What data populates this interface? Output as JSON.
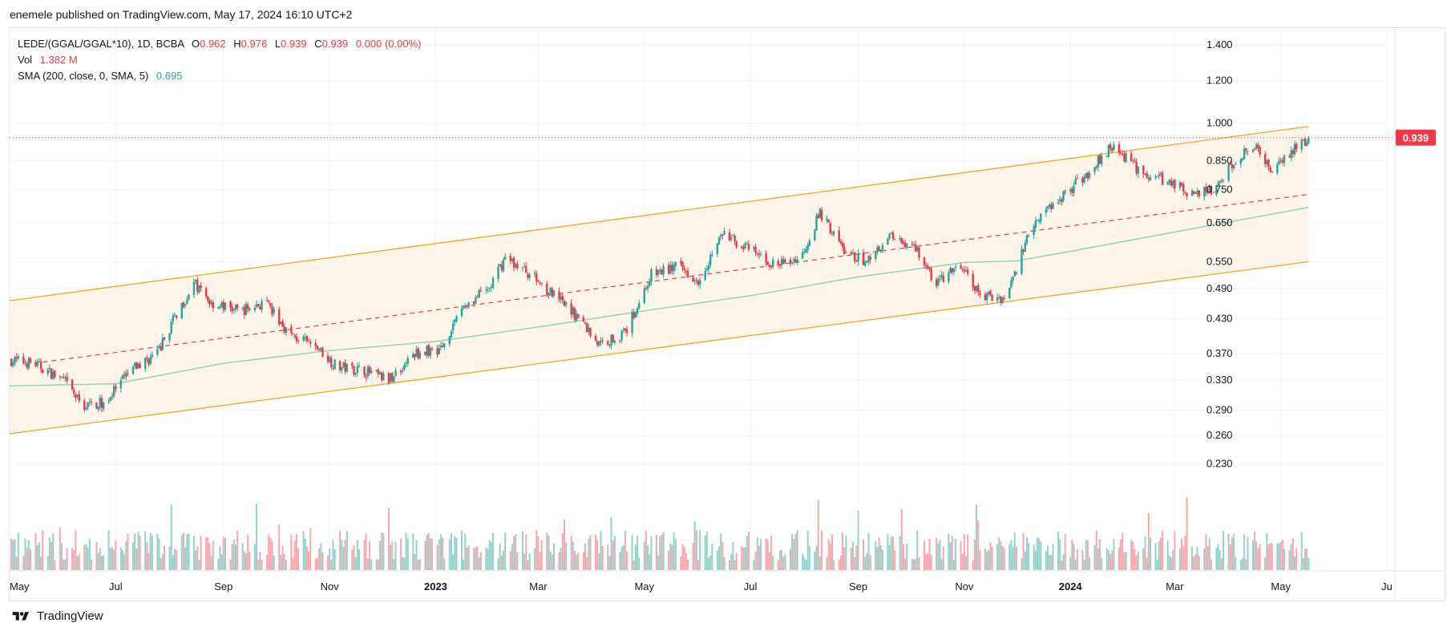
{
  "header": {
    "published": "enemele published on TradingView.com, May 17, 2024 16:10 UTC+2"
  },
  "legend": {
    "symbol": "LEDE/(GGAL/GGAL*10), 1D, BCBA",
    "o_label": "O",
    "o_value": "0.962",
    "h_label": "H",
    "h_value": "0.976",
    "l_label": "L",
    "l_value": "0.939",
    "c_label": "C",
    "c_value": "0.939",
    "change": "0.000 (0.00%)",
    "vol_label": "Vol",
    "vol_value": "1.382 M",
    "sma_label": "SMA (200, close, 0, SMA, 5)",
    "sma_value": "0.695"
  },
  "footer": {
    "brand": "TradingView"
  },
  "colors": {
    "up": "#26a69a",
    "down": "#f23645",
    "channel": "#f7a21b",
    "channel_fill": "#fdf3e3",
    "sma": "#8fd3bd",
    "grid": "#f0f3fa",
    "midline": "#f23645"
  },
  "chart_data": {
    "type": "candlestick",
    "title": "LEDE/(GGAL/GGAL*10), 1D, BCBA",
    "scale": "log",
    "ylim": [
      0.205,
      1.5
    ],
    "y_ticks": [
      "1.400",
      "1.200",
      "1.000",
      "0.850",
      "0.750",
      "0.650",
      "0.550",
      "0.490",
      "0.430",
      "0.370",
      "0.330",
      "0.290",
      "0.260",
      "0.230"
    ],
    "last_price": "0.939",
    "x_labels": [
      {
        "date": "2022-05-01",
        "label": "May"
      },
      {
        "date": "2022-07-01",
        "label": "Jul"
      },
      {
        "date": "2022-09-01",
        "label": "Sep"
      },
      {
        "date": "2022-11-01",
        "label": "Nov"
      },
      {
        "date": "2023-01-01",
        "label": "2023",
        "bold": true
      },
      {
        "date": "2023-03-01",
        "label": "Mar"
      },
      {
        "date": "2023-05-01",
        "label": "May"
      },
      {
        "date": "2023-07-01",
        "label": "Jul"
      },
      {
        "date": "2023-09-01",
        "label": "Sep"
      },
      {
        "date": "2023-11-01",
        "label": "Nov"
      },
      {
        "date": "2024-01-01",
        "label": "2024",
        "bold": true
      },
      {
        "date": "2024-03-01",
        "label": "Mar"
      },
      {
        "date": "2024-05-01",
        "label": "May"
      },
      {
        "date": "2024-07-01",
        "label": "Ju"
      }
    ],
    "date_range": [
      "2022-05-01",
      "2024-05-17"
    ],
    "price_keypoints": [
      [
        "2022-05-01",
        0.36
      ],
      [
        "2022-05-15",
        0.355
      ],
      [
        "2022-06-01",
        0.33
      ],
      [
        "2022-06-12",
        0.295
      ],
      [
        "2022-06-25",
        0.3
      ],
      [
        "2022-07-10",
        0.345
      ],
      [
        "2022-07-25",
        0.37
      ],
      [
        "2022-08-05",
        0.44
      ],
      [
        "2022-08-15",
        0.5
      ],
      [
        "2022-08-25",
        0.46
      ],
      [
        "2022-09-10",
        0.445
      ],
      [
        "2022-09-25",
        0.46
      ],
      [
        "2022-10-10",
        0.4
      ],
      [
        "2022-10-25",
        0.38
      ],
      [
        "2022-11-05",
        0.35
      ],
      [
        "2022-11-20",
        0.345
      ],
      [
        "2022-12-05",
        0.33
      ],
      [
        "2022-12-20",
        0.37
      ],
      [
        "2023-01-05",
        0.38
      ],
      [
        "2023-01-15",
        0.45
      ],
      [
        "2023-02-01",
        0.49
      ],
      [
        "2023-02-10",
        0.56
      ],
      [
        "2023-02-25",
        0.52
      ],
      [
        "2023-03-10",
        0.475
      ],
      [
        "2023-03-25",
        0.43
      ],
      [
        "2023-04-05",
        0.385
      ],
      [
        "2023-04-20",
        0.405
      ],
      [
        "2023-05-05",
        0.52
      ],
      [
        "2023-05-20",
        0.54
      ],
      [
        "2023-06-01",
        0.51
      ],
      [
        "2023-06-15",
        0.62
      ],
      [
        "2023-06-30",
        0.58
      ],
      [
        "2023-07-15",
        0.54
      ],
      [
        "2023-07-30",
        0.56
      ],
      [
        "2023-08-10",
        0.68
      ],
      [
        "2023-08-25",
        0.57
      ],
      [
        "2023-09-05",
        0.55
      ],
      [
        "2023-09-20",
        0.62
      ],
      [
        "2023-10-05",
        0.58
      ],
      [
        "2023-10-15",
        0.5
      ],
      [
        "2023-10-30",
        0.54
      ],
      [
        "2023-11-10",
        0.475
      ],
      [
        "2023-11-25",
        0.47
      ],
      [
        "2023-12-10",
        0.65
      ],
      [
        "2023-12-25",
        0.72
      ],
      [
        "2024-01-10",
        0.8
      ],
      [
        "2024-01-25",
        0.91
      ],
      [
        "2024-02-10",
        0.81
      ],
      [
        "2024-02-25",
        0.78
      ],
      [
        "2024-03-10",
        0.74
      ],
      [
        "2024-03-25",
        0.75
      ],
      [
        "2024-04-05",
        0.86
      ],
      [
        "2024-04-15",
        0.91
      ],
      [
        "2024-04-25",
        0.82
      ],
      [
        "2024-05-05",
        0.87
      ],
      [
        "2024-05-17",
        0.939
      ]
    ],
    "channel": {
      "upper": [
        [
          "2022-05-01",
          0.465
        ],
        [
          "2024-05-17",
          0.985
        ]
      ],
      "lower": [
        [
          "2022-05-01",
          0.262
        ],
        [
          "2024-05-17",
          0.55
        ]
      ],
      "middle_dashed": [
        [
          "2022-05-15",
          0.355
        ],
        [
          "2024-05-17",
          0.735
        ]
      ]
    },
    "sma": {
      "label": "SMA (200, close, 0, SMA, 5)",
      "points": [
        [
          "2022-05-01",
          0.322
        ],
        [
          "2022-07-01",
          0.325
        ],
        [
          "2022-09-01",
          0.355
        ],
        [
          "2022-11-01",
          0.375
        ],
        [
          "2023-01-01",
          0.39
        ],
        [
          "2023-03-01",
          0.415
        ],
        [
          "2023-05-01",
          0.445
        ],
        [
          "2023-07-01",
          0.475
        ],
        [
          "2023-09-01",
          0.515
        ],
        [
          "2023-11-01",
          0.548
        ],
        [
          "2023-12-01",
          0.552
        ],
        [
          "2024-01-01",
          0.575
        ],
        [
          "2024-03-01",
          0.625
        ],
        [
          "2024-05-17",
          0.695
        ]
      ]
    },
    "volume": {
      "label": "Vol",
      "last": "1.382 M"
    }
  }
}
